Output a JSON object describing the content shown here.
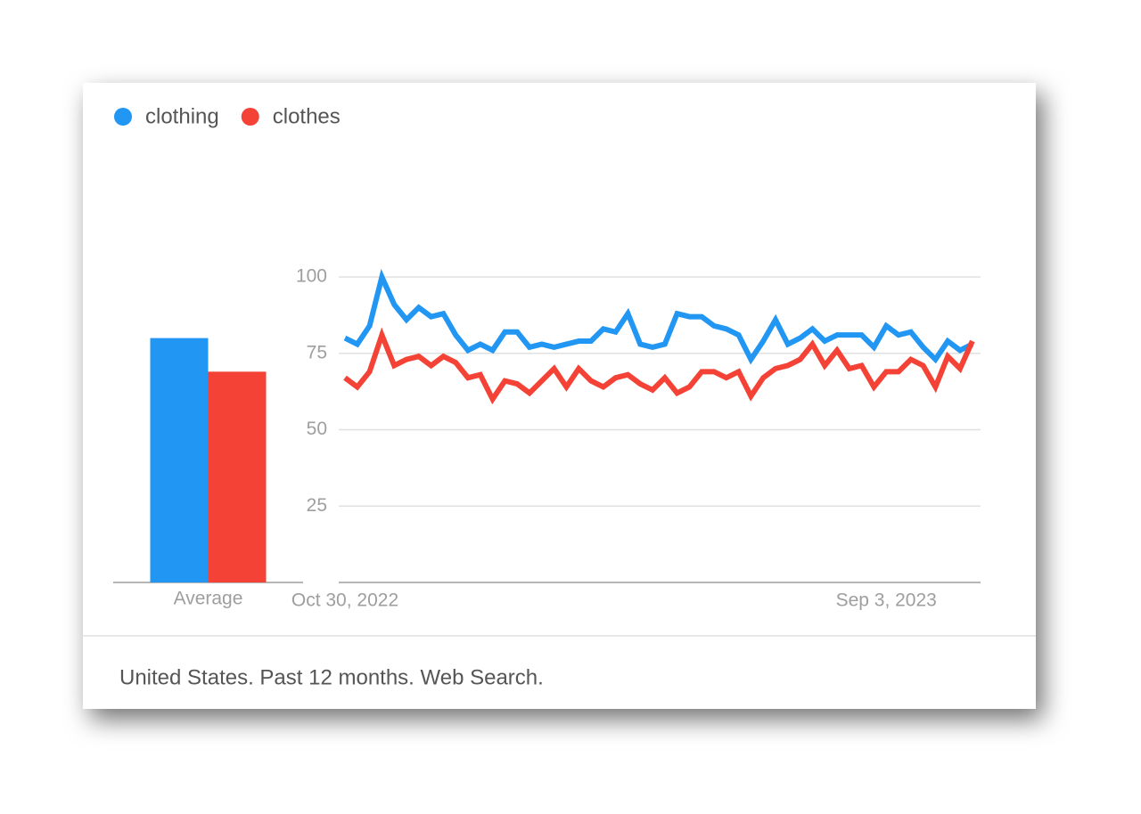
{
  "chart_data": [
    {
      "type": "bar",
      "categories": [
        "Average"
      ],
      "series": [
        {
          "color": "#2196f3",
          "values": [
            80
          ]
        },
        {
          "color": "#f44336",
          "values": [
            69
          ]
        }
      ],
      "ylim": [
        0,
        100
      ]
    },
    {
      "type": "line",
      "categories": [
        "Oct 30, 2022",
        null,
        null,
        null,
        null,
        null,
        null,
        null,
        null,
        null,
        null,
        null,
        null,
        null,
        null,
        null,
        null,
        null,
        null,
        null,
        null,
        null,
        null,
        null,
        null,
        null,
        null,
        null,
        null,
        null,
        null,
        null,
        null,
        null,
        null,
        null,
        null,
        null,
        null,
        null,
        null,
        null,
        null,
        null,
        "Sep 3, 2023",
        null,
        null,
        null,
        null,
        null,
        null,
        null
      ],
      "series": [
        {
          "name": "clothing",
          "color": "#2196f3",
          "values": [
            80,
            78,
            84,
            100,
            91,
            86,
            90,
            87,
            88,
            81,
            76,
            78,
            76,
            82,
            82,
            77,
            78,
            77,
            78,
            79,
            79,
            83,
            82,
            88,
            78,
            77,
            78,
            88,
            87,
            87,
            84,
            83,
            81,
            73,
            79,
            86,
            78,
            80,
            83,
            79,
            81,
            81,
            81,
            77,
            84,
            81,
            82,
            77,
            73,
            79,
            76,
            78
          ]
        },
        {
          "name": "clothes",
          "color": "#f44336",
          "values": [
            67,
            64,
            69,
            81,
            71,
            73,
            74,
            71,
            74,
            72,
            67,
            68,
            60,
            66,
            65,
            62,
            66,
            70,
            64,
            70,
            66,
            64,
            67,
            68,
            65,
            63,
            67,
            62,
            64,
            69,
            69,
            67,
            69,
            61,
            67,
            70,
            71,
            73,
            78,
            71,
            76,
            70,
            71,
            64,
            69,
            69,
            73,
            71,
            64,
            74,
            70,
            79
          ]
        }
      ],
      "ylim": [
        0,
        100
      ],
      "yticks": [
        25,
        50,
        75,
        100
      ],
      "grid": true
    }
  ],
  "footer": "United States. Past 12 months. Web Search."
}
